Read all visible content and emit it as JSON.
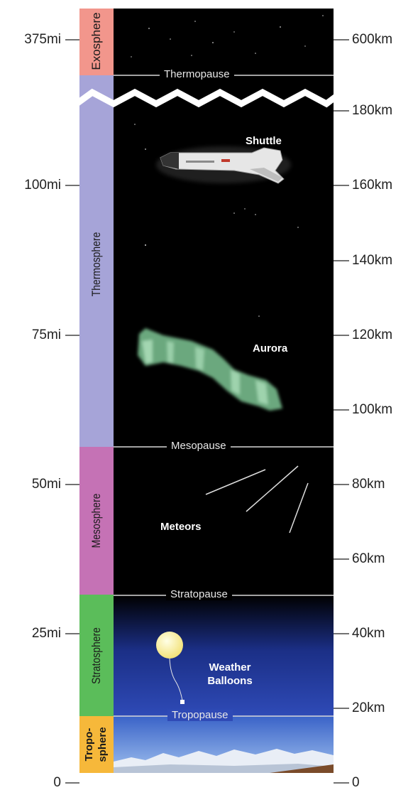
{
  "left_axis": {
    "ticks": [
      {
        "label": "375mi"
      },
      {
        "label": "100mi"
      },
      {
        "label": "75mi"
      },
      {
        "label": "50mi"
      },
      {
        "label": "25mi"
      },
      {
        "label": "0"
      }
    ]
  },
  "right_axis": {
    "ticks": [
      {
        "label": "600km"
      },
      {
        "label": "180km"
      },
      {
        "label": "160km"
      },
      {
        "label": "140km"
      },
      {
        "label": "120km"
      },
      {
        "label": "100km"
      },
      {
        "label": "80km"
      },
      {
        "label": "60km"
      },
      {
        "label": "40km"
      },
      {
        "label": "20km"
      },
      {
        "label": "0"
      }
    ]
  },
  "layers": {
    "exosphere": {
      "name": "Exosphere",
      "color": "#f2968c"
    },
    "thermosphere": {
      "name": "Thermosphere",
      "color": "#a6a4d8"
    },
    "mesosphere": {
      "name": "Mesosphere",
      "color": "#c572b5"
    },
    "stratosphere": {
      "name": "Stratosphere",
      "color": "#5bbd5a"
    },
    "troposphere": {
      "name_line1": "Tropo-",
      "name_line2": "sphere",
      "color": "#f6b83a"
    }
  },
  "boundaries": {
    "thermopause": "Thermopause",
    "mesopause": "Mesopause",
    "stratopause": "Stratopause",
    "tropopause": "Tropopause"
  },
  "objects": {
    "shuttle": "Shuttle",
    "aurora": "Aurora",
    "meteors": "Meteors",
    "balloons_line1": "Weather",
    "balloons_line2": "Balloons"
  },
  "colors": {
    "sky_dark": "#000000",
    "sky_blue": "#2a40a8",
    "aurora_green": "#8fe0a8"
  }
}
